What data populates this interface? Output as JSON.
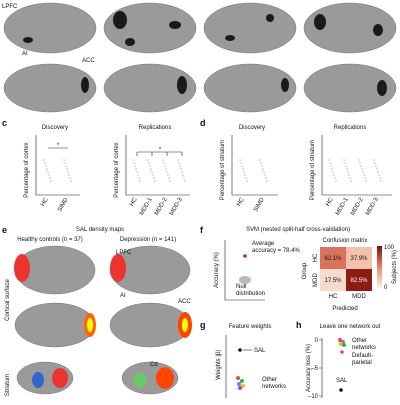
{
  "top": {
    "lpfc": "LPFC",
    "ai": "AI",
    "acc": "ACC"
  },
  "panel_c": {
    "letter": "c",
    "discovery": "Discovery",
    "replications": "Replications",
    "ylabel": "Percentage of cortex",
    "disc_groups": [
      "HC",
      "SIMD"
    ],
    "rep_groups": [
      "HC",
      "MDD-1",
      "MDD-2",
      "MDD-3"
    ],
    "sig": "*",
    "sig2": "*"
  },
  "panel_d": {
    "letter": "d",
    "discovery": "Discovery",
    "replications": "Replications",
    "ylabel": "Percentage of striatum",
    "disc_groups": [
      "HC",
      "SIMD"
    ],
    "rep_groups": [
      "HC",
      "MDD-1",
      "MDD-2",
      "MDD-3"
    ]
  },
  "panel_e": {
    "letter": "e",
    "title": "SAL density maps",
    "hc": "Healthy controls (n = 37)",
    "dep": "Depression (n = 141)",
    "lpfc": "LPFC",
    "ai": "AI",
    "acc": "ACC",
    "cortical": "Cortical surface",
    "striatum": "Striatum",
    "cd": "Cd"
  },
  "panel_f": {
    "letter": "f",
    "title": "SVM (nested split-half cross-validation)",
    "avg1": "Average",
    "avg2": "accuracy = 78.4%",
    "null1": "Null",
    "null2": "distribution",
    "ylabel": "Accuracy (%)",
    "cm_title": "Confusion matrix",
    "group": "Group",
    "labels": [
      "HC",
      "MDD"
    ],
    "cells": [
      [
        "62.1%",
        "37.9%"
      ],
      [
        "17.5%",
        "82.5%"
      ]
    ],
    "predicted": "Predicted",
    "cbar_label": "Subjects (%)",
    "cbar_ticks": [
      "100",
      "0"
    ]
  },
  "panel_g": {
    "letter": "g",
    "title": "Feature weights",
    "sal": "SAL",
    "other1": "Other",
    "other2": "networks",
    "ylabel": "Weights |β|"
  },
  "panel_h": {
    "letter": "h",
    "title": "Leave one network out",
    "other1": "Other",
    "other2": "networks",
    "dp1": "Default-",
    "dp2": "parietal",
    "sal": "SAL",
    "ylabel": "Accuracy loss (%)",
    "ticks": [
      "0",
      "–5",
      "–10"
    ]
  }
}
